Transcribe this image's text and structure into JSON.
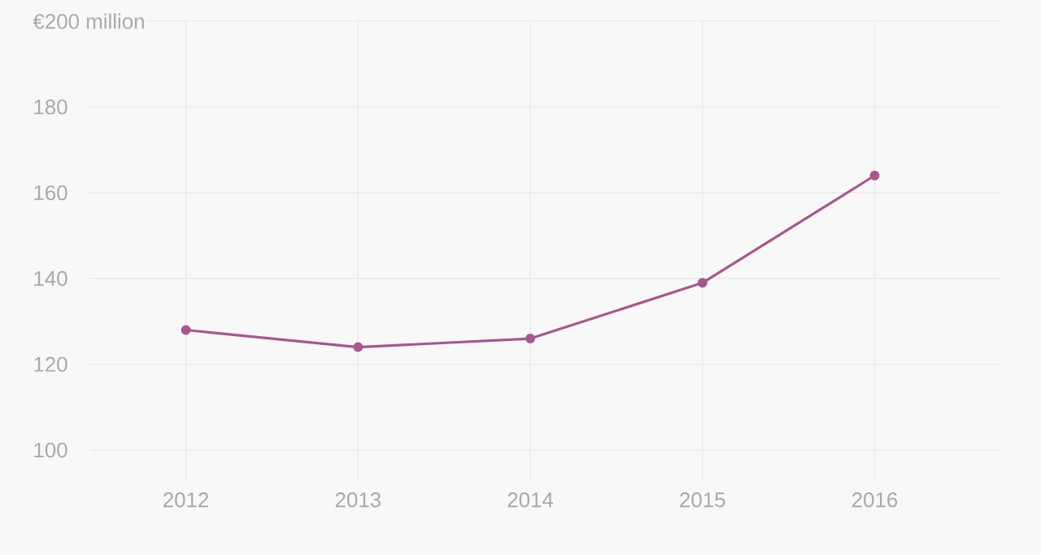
{
  "chart_data": {
    "type": "line",
    "x": [
      2012,
      2013,
      2014,
      2015,
      2016
    ],
    "series": [
      {
        "color": "#a8578f",
        "values": [
          128,
          124,
          126,
          139,
          164
        ]
      }
    ],
    "xlim": [
      2011.44,
      2016.73
    ],
    "xticks": [
      2012,
      2013,
      2014,
      2015,
      2016
    ],
    "ylim": [
      93,
      200
    ],
    "yticks": [
      100,
      120,
      140,
      160,
      180,
      {
        "value": 200,
        "label": "€200 million"
      }
    ],
    "grid": true,
    "marker": "circle",
    "line_style": "solid"
  }
}
